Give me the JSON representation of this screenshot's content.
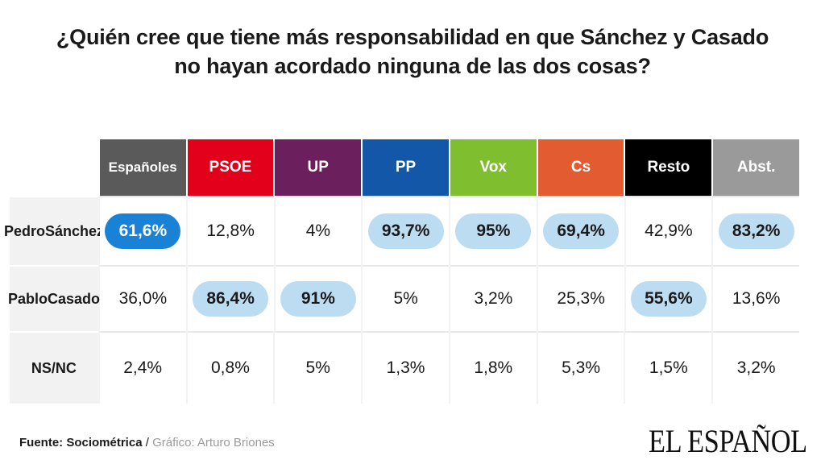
{
  "title": {
    "line1": "¿Quién cree que tiene más responsabilidad en que Sánchez y Casado",
    "line2": "no hayan acordado ninguna de las dos cosas?"
  },
  "colors": {
    "Españoles": "#5a5a5a",
    "PSOE": "#e2001a",
    "UP": "#6b1f5d",
    "PP": "#1358a8",
    "Vox": "#7fbf2f",
    "Cs": "#e35b30",
    "Resto": "#000000",
    "Abst.": "#9a9a9a",
    "highlight_light": "#bcdcf2",
    "highlight_dark": "#1a82d6"
  },
  "chart_data": {
    "type": "table",
    "title": "¿Quién cree que tiene más responsabilidad en que Sánchez y Casado no hayan acordado ninguna de las dos cosas?",
    "columns": [
      "Españoles",
      "PSOE",
      "UP",
      "PP",
      "Vox",
      "Cs",
      "Resto",
      "Abst."
    ],
    "rows": [
      {
        "label": [
          "Pedro",
          "Sánchez"
        ],
        "display": [
          "61,6%",
          "12,8%",
          "4%",
          "93,7%",
          "95%",
          "69,4%",
          "42,9%",
          "83,2%"
        ],
        "values": [
          61.6,
          12.8,
          4,
          93.7,
          95,
          69.4,
          42.9,
          83.2
        ],
        "highlight": [
          "dark",
          "",
          "",
          "light",
          "light",
          "light",
          "",
          "light"
        ]
      },
      {
        "label": [
          "Pablo",
          "Casado"
        ],
        "display": [
          "36,0%",
          "86,4%",
          "91%",
          "5%",
          "3,2%",
          "25,3%",
          "55,6%",
          "13,6%"
        ],
        "values": [
          36.0,
          86.4,
          91,
          5,
          3.2,
          25.3,
          55.6,
          13.6
        ],
        "highlight": [
          "",
          "light",
          "light",
          "",
          "",
          "",
          "light",
          ""
        ]
      },
      {
        "label": [
          "NS/NC"
        ],
        "display": [
          "2,4%",
          "0,8%",
          "5%",
          "1,3%",
          "1,8%",
          "5,3%",
          "1,5%",
          "3,2%"
        ],
        "values": [
          2.4,
          0.8,
          5,
          1.3,
          1.8,
          5.3,
          1.5,
          3.2
        ],
        "highlight": [
          "",
          "",
          "",
          "",
          "",
          "",
          "",
          ""
        ]
      }
    ]
  },
  "footer": {
    "source_label": "Fuente: Sociométrica",
    "separator": "/",
    "credit": "Gráfico: Arturo Briones",
    "brand": "EL ESPAÑOL"
  }
}
